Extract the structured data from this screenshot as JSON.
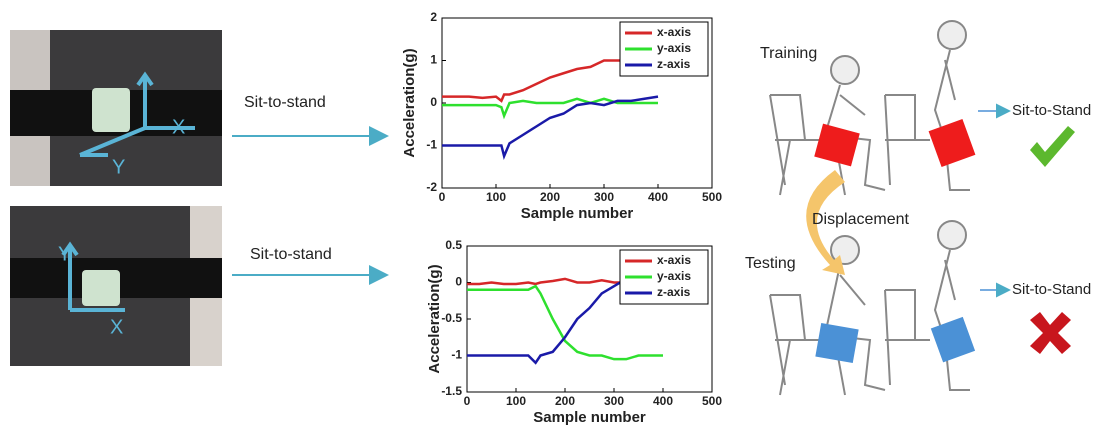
{
  "chart_data": [
    {
      "type": "line",
      "xlabel": "Sample number",
      "ylabel": "Acceleration(g)",
      "x": [
        0,
        25,
        50,
        75,
        100,
        110,
        115,
        125,
        150,
        175,
        200,
        225,
        250,
        275,
        300,
        325,
        350,
        375,
        400
      ],
      "series": [
        {
          "name": "x-axis",
          "color": "#d62728",
          "values": [
            0.15,
            0.15,
            0.15,
            0.12,
            0.15,
            0.05,
            0.2,
            0.2,
            0.3,
            0.45,
            0.6,
            0.7,
            0.8,
            0.85,
            1.0,
            1.0,
            1.0,
            1.0,
            null
          ]
        },
        {
          "name": "y-axis",
          "color": "#2ee02e",
          "values": [
            -0.05,
            -0.05,
            -0.05,
            -0.05,
            -0.05,
            -0.1,
            -0.3,
            0,
            0.05,
            0,
            0,
            0,
            0.1,
            0,
            0.1,
            0,
            0,
            0,
            0
          ]
        },
        {
          "name": "z-axis",
          "color": "#1a1aa8",
          "values": [
            -1,
            -1,
            -1,
            -1,
            -1,
            -1,
            -1.25,
            -0.95,
            -0.75,
            -0.55,
            -0.35,
            -0.25,
            -0.05,
            0,
            -0.05,
            0.05,
            0.05,
            0.1,
            0.15
          ]
        }
      ],
      "xlim": [
        0,
        500
      ],
      "xticks": [
        0,
        100,
        200,
        300,
        400,
        500
      ],
      "ylim": [
        -2,
        2
      ],
      "yticks": [
        -2,
        -1,
        0,
        1,
        2
      ],
      "legend": "upper right"
    },
    {
      "type": "line",
      "xlabel": "Sample number",
      "ylabel": "Acceleration(g)",
      "x": [
        0,
        25,
        50,
        75,
        100,
        125,
        140,
        150,
        175,
        200,
        225,
        250,
        275,
        300,
        325,
        350,
        375,
        400
      ],
      "series": [
        {
          "name": "x-axis",
          "color": "#d62728",
          "values": [
            -0.02,
            -0.02,
            0,
            -0.02,
            -0.02,
            0,
            -0.02,
            0,
            0.02,
            0.05,
            0,
            0,
            0.03,
            0,
            0,
            0,
            0,
            null
          ]
        },
        {
          "name": "y-axis",
          "color": "#2ee02e",
          "values": [
            -0.1,
            -0.1,
            -0.1,
            -0.1,
            -0.1,
            -0.1,
            -0.05,
            -0.15,
            -0.5,
            -0.8,
            -0.95,
            -1.0,
            -1.0,
            -1.05,
            -1.05,
            -1.0,
            -1.0,
            -1.0
          ]
        },
        {
          "name": "z-axis",
          "color": "#1a1aa8",
          "values": [
            -1,
            -1,
            -1,
            -1,
            -1,
            -1,
            -1.1,
            -1,
            -0.95,
            -0.75,
            -0.5,
            -0.35,
            -0.15,
            -0.05,
            0.05,
            0.05,
            0.05,
            null
          ]
        }
      ],
      "xlim": [
        0,
        500
      ],
      "xticks": [
        0,
        100,
        200,
        300,
        400,
        500
      ],
      "ylim": [
        -1.5,
        0.5
      ],
      "yticks": [
        -1.5,
        -1,
        -0.5,
        0,
        0.5
      ],
      "legend": "upper right"
    }
  ],
  "labels": {
    "arrow_top": "Sit-to-stand",
    "arrow_bottom": "Sit-to-stand",
    "training": "Training",
    "testing": "Testing",
    "displacement": "Displacement",
    "result_top": "Sit-to-Stand",
    "result_bottom": "Sit-to-Stand",
    "photo_top": {
      "x": "X",
      "y": "Y"
    },
    "photo_bottom": {
      "x": "X",
      "y": "Y"
    }
  }
}
